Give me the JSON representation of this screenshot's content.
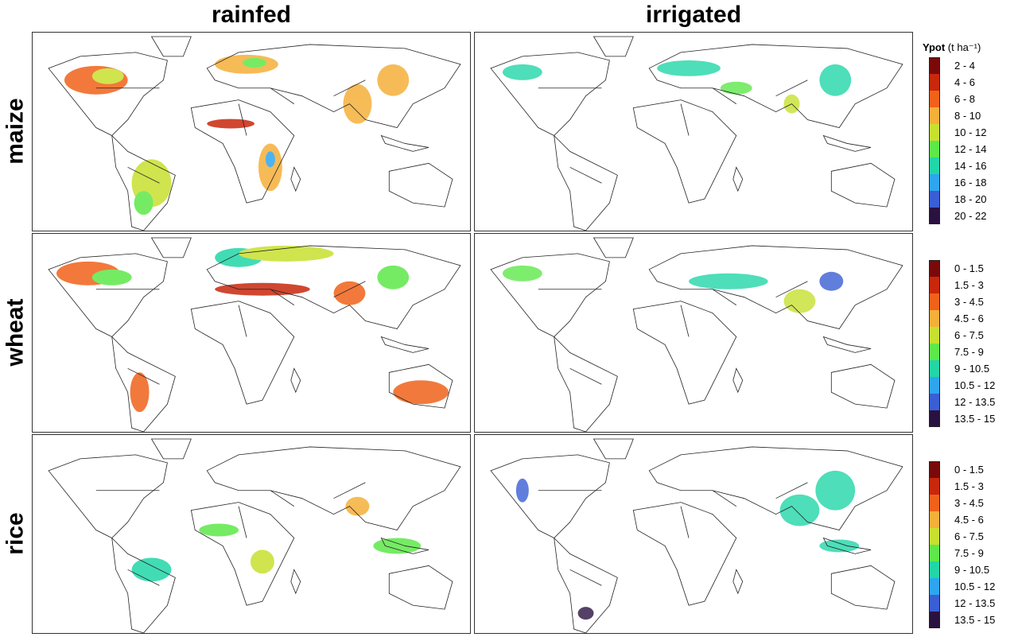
{
  "columns": [
    "rainfed",
    "irrigated"
  ],
  "rows": [
    "maize",
    "wheat",
    "rice"
  ],
  "legend_title": "Ypot",
  "legend_unit": "(t ha⁻¹)",
  "legends": [
    {
      "crop": "maize",
      "classes": [
        "2 - 4",
        "4 - 6",
        "6 - 8",
        "8 - 10",
        "10 - 12",
        "12 - 14",
        "14 - 16",
        "16 - 18",
        "18 - 20",
        "20 - 22"
      ]
    },
    {
      "crop": "wheat",
      "classes": [
        "0 - 1.5",
        "1.5 - 3",
        "3 - 4.5",
        "4.5 - 6",
        "6 - 7.5",
        "7.5 - 9",
        "9 - 10.5",
        "10.5 - 12",
        "12 - 13.5",
        "13.5 - 15"
      ]
    },
    {
      "crop": "rice",
      "classes": [
        "0 - 1.5",
        "1.5 - 3",
        "3 - 4.5",
        "4.5 - 6",
        "6 - 7.5",
        "7.5 - 9",
        "9 - 10.5",
        "10.5 - 12",
        "12 - 13.5",
        "13.5 - 15"
      ]
    }
  ],
  "colors": [
    "#7a0a0a",
    "#c8280c",
    "#f0621a",
    "#f5b03a",
    "#c8e030",
    "#5ee84a",
    "#22d6a8",
    "#2ea6ee",
    "#3a5ed4",
    "#2a1240"
  ]
}
